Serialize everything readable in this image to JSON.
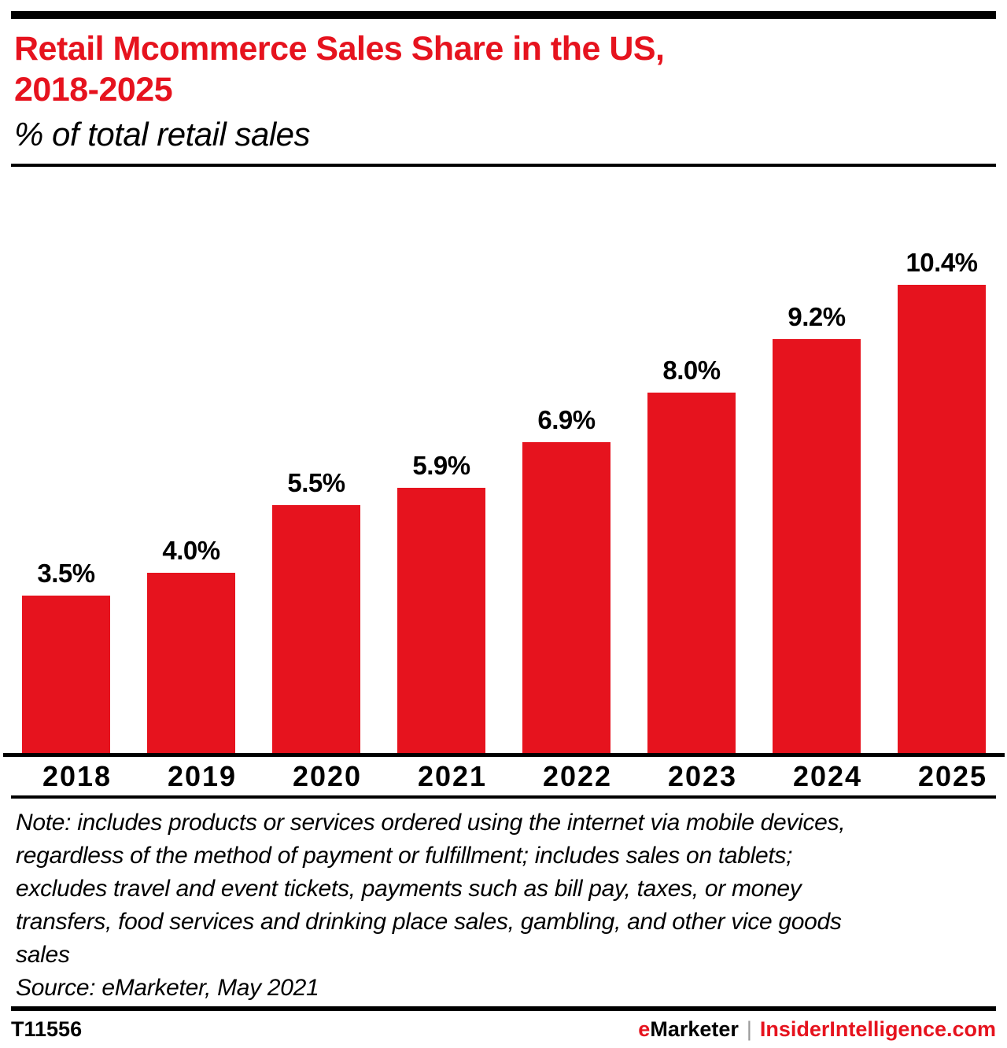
{
  "header": {
    "title_line1": "Retail Mcommerce Sales Share in the US,",
    "title_line2": "2018-2025",
    "subtitle": "% of total retail sales"
  },
  "chart_data": {
    "type": "bar",
    "title": "Retail Mcommerce Sales Share in the US, 2018-2025",
    "subtitle": "% of total retail sales",
    "categories": [
      "2018",
      "2019",
      "2020",
      "2021",
      "2022",
      "2023",
      "2024",
      "2025"
    ],
    "values": [
      3.5,
      4.0,
      5.5,
      5.9,
      6.9,
      8.0,
      9.2,
      10.4
    ],
    "labels": [
      "3.5%",
      "4.0%",
      "5.5%",
      "5.9%",
      "6.9%",
      "8.0%",
      "9.2%",
      "10.4%"
    ],
    "xlabel": "",
    "ylabel": "% of total retail sales",
    "ylim": [
      0,
      11
    ],
    "grid": false,
    "legend": false,
    "bar_color": "#e6131e",
    "label_color": "#000000"
  },
  "note": {
    "text": "Note: includes products or services ordered using the internet via mobile devices,\nregardless of the method of payment or fulfillment; includes sales on tablets;\nexcludes travel and event tickets, payments such as bill pay, taxes, or money\ntransfers, food services and drinking place sales, gambling, and other vice goods\nsales",
    "source": "Source: eMarketer, May 2021"
  },
  "footer": {
    "chart_id": "T11556",
    "brand_prefix": "e",
    "brand_rest": "Marketer",
    "separator": "|",
    "site": "InsiderIntelligence.com"
  },
  "colors": {
    "accent_red": "#e6131e",
    "black": "#000000",
    "separator_gray": "#9a9a9a"
  }
}
